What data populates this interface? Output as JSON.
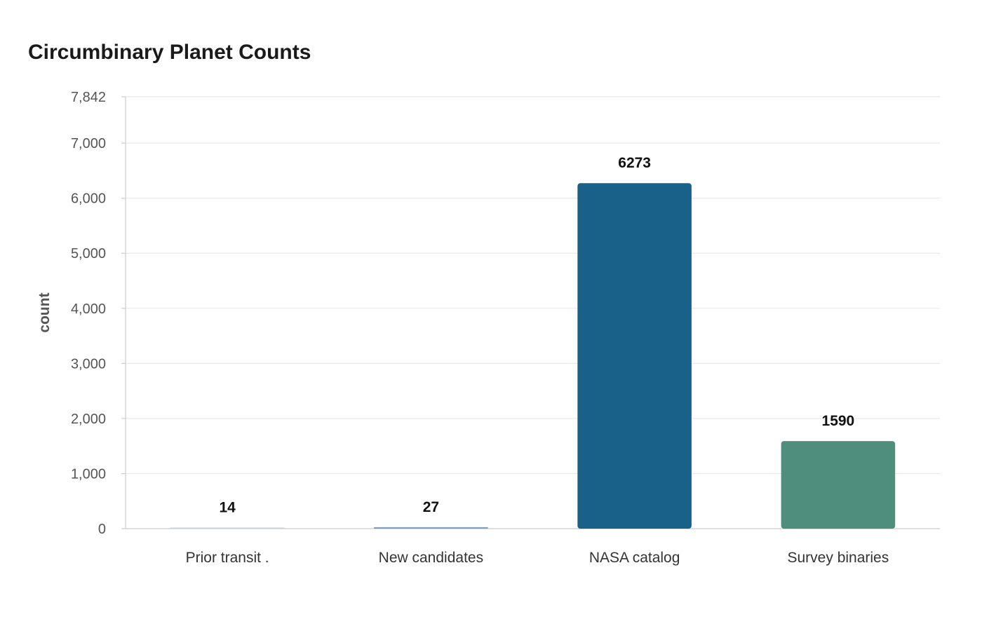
{
  "chart_data": {
    "type": "bar",
    "title": "Circumbinary Planet Counts",
    "xlabel": "",
    "ylabel": "count",
    "categories": [
      "Prior transit .",
      "New candidates",
      "NASA catalog",
      "Survey binaries"
    ],
    "values": [
      14,
      27,
      6273,
      1590
    ],
    "colors": [
      "#c5d5e4",
      "#7f9fc2",
      "#1a6189",
      "#4f8e7d"
    ],
    "ylim": [
      0,
      7842
    ],
    "yticks": [
      0,
      1000,
      2000,
      3000,
      4000,
      5000,
      6000,
      7000,
      7842
    ],
    "ytick_labels": [
      "0",
      "1,000",
      "2,000",
      "3,000",
      "4,000",
      "5,000",
      "6,000",
      "7,000",
      "7,842"
    ],
    "grid": true,
    "legend": "none"
  }
}
